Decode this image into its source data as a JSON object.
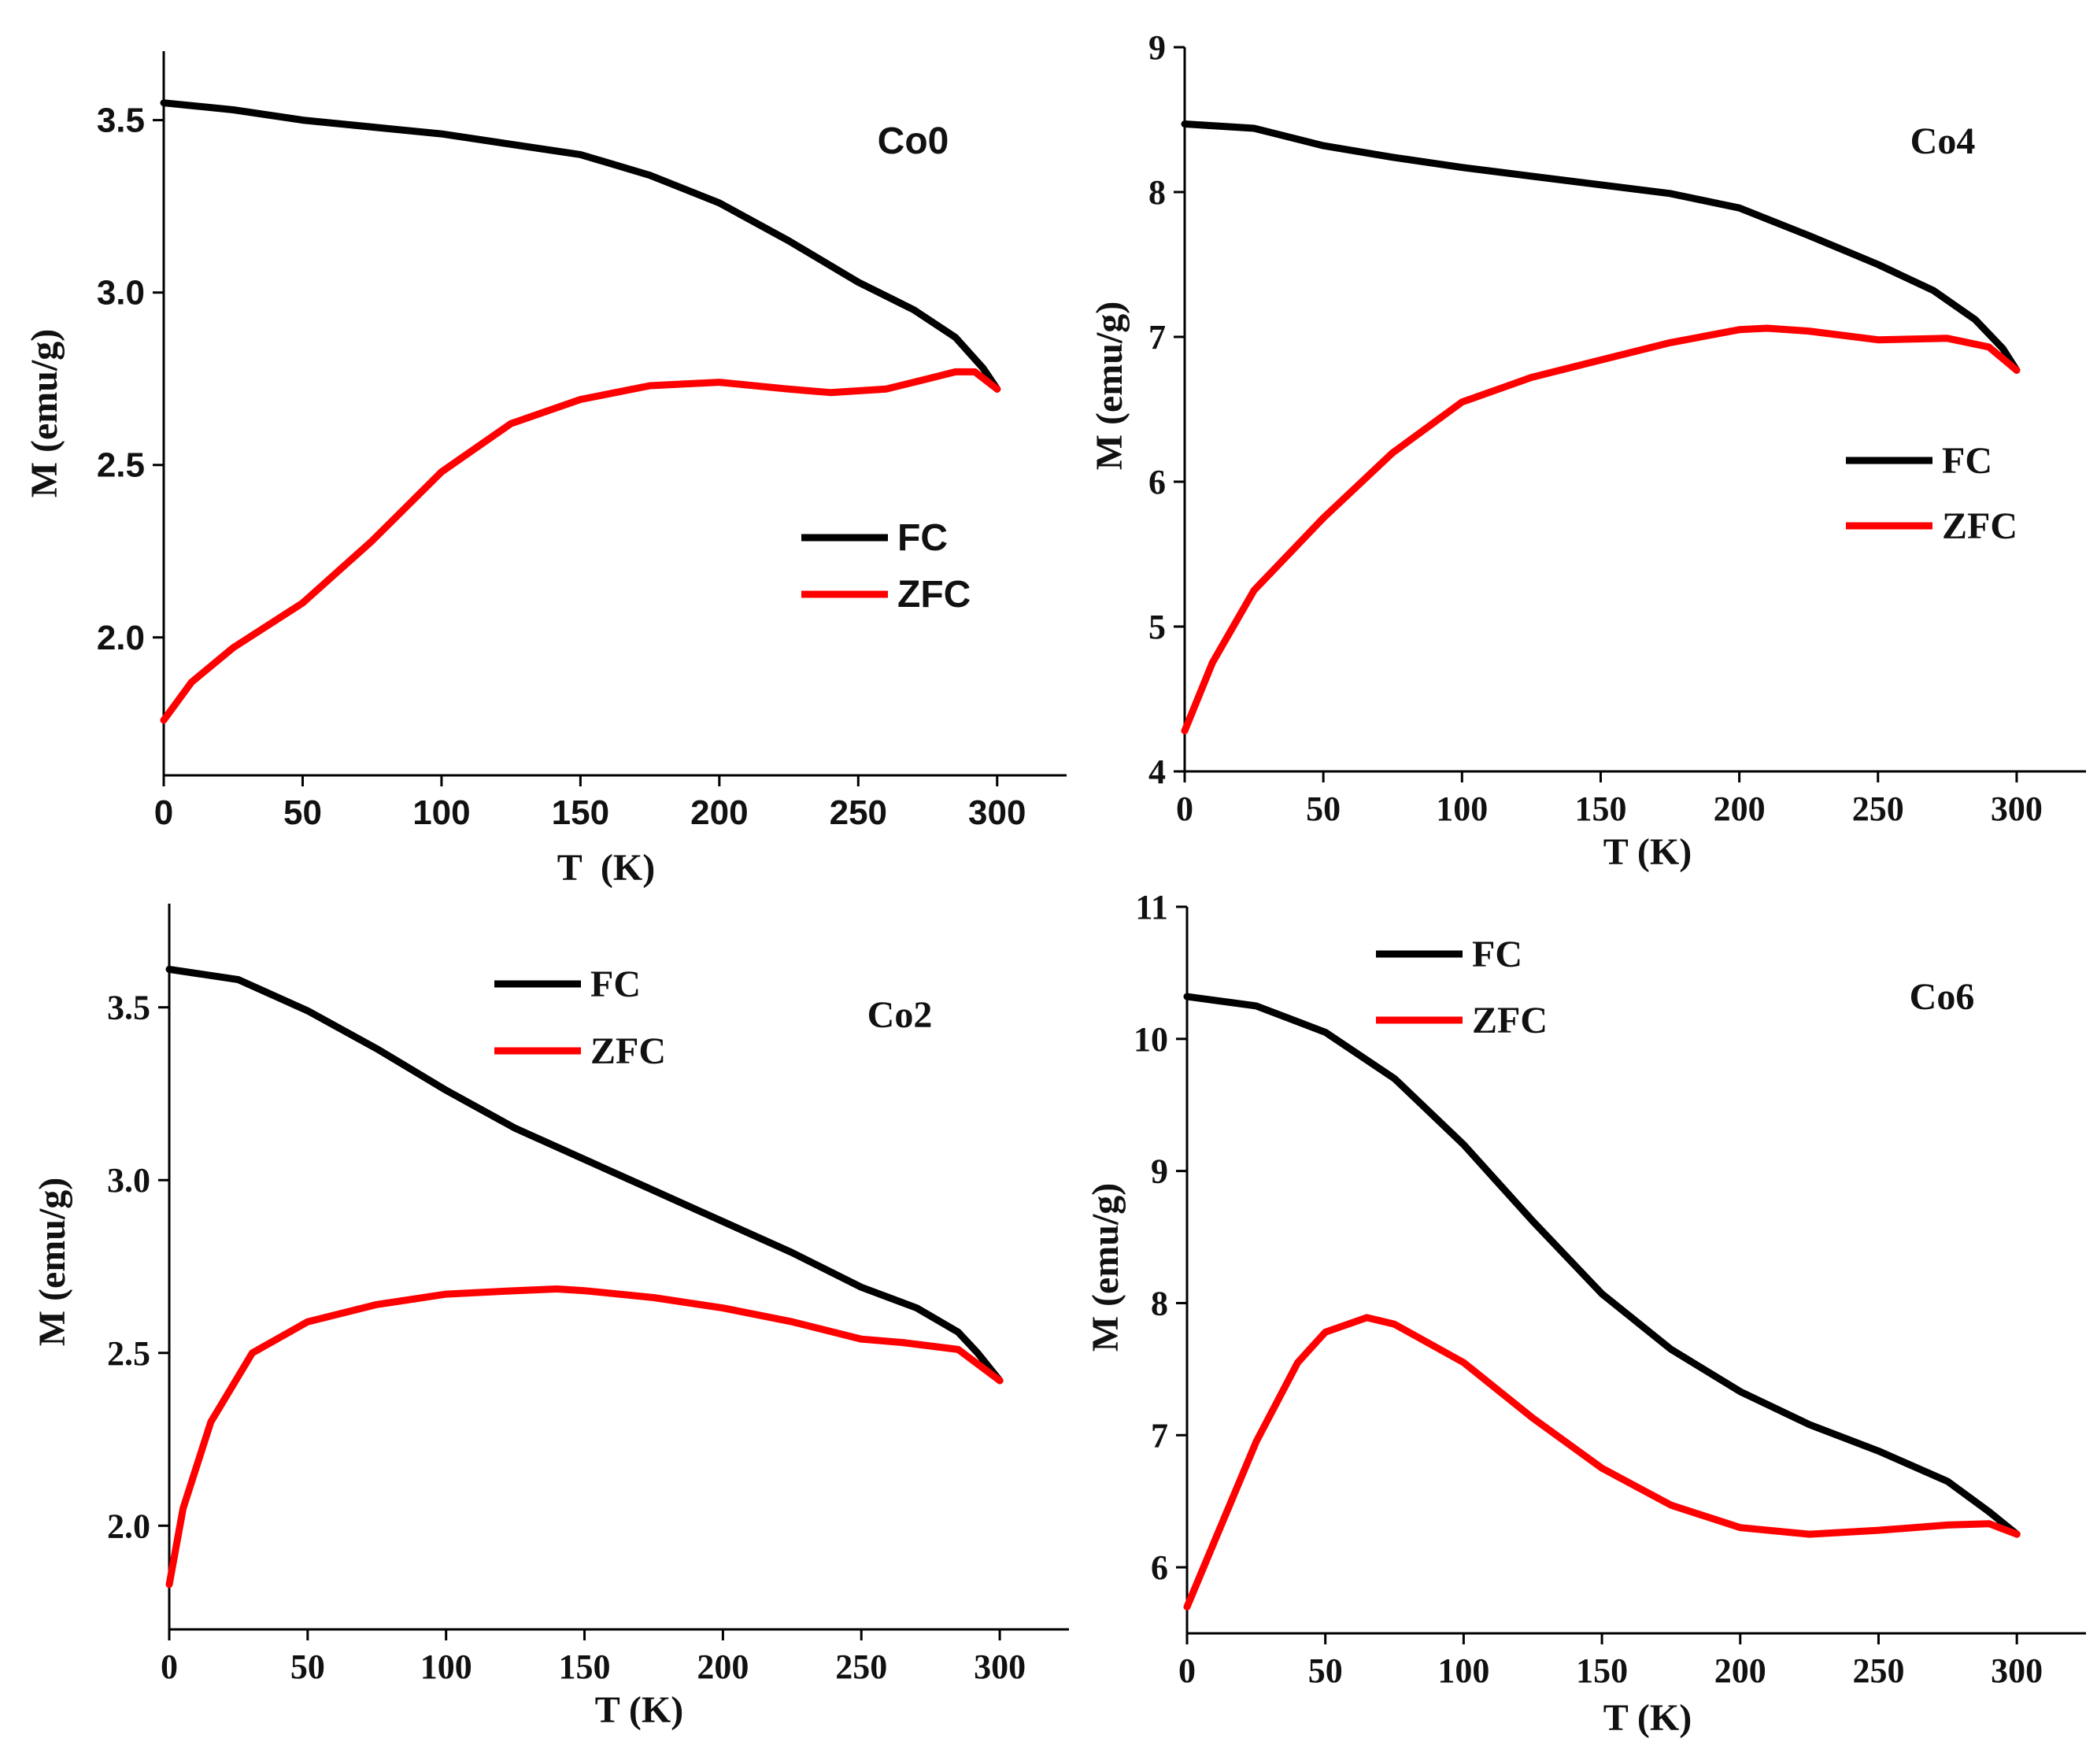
{
  "colors": {
    "FC": "#000000",
    "ZFC": "#ff0000"
  },
  "chart_data": [
    {
      "id": "co0",
      "type": "line",
      "label": "Co0",
      "xlabel": "T  (K)",
      "ylabel": "M (emu/g)",
      "xlim": [
        0,
        325
      ],
      "ylim": [
        1.6,
        3.7
      ],
      "xticks": [
        0,
        50,
        100,
        150,
        200,
        250,
        300
      ],
      "yticks": [
        2.0,
        2.5,
        3.0,
        3.5
      ],
      "ytick_labels": [
        "2.0",
        "2.5",
        "3.0",
        "3.5"
      ],
      "legend": [
        "FC",
        "ZFC"
      ],
      "series": [
        {
          "name": "FC",
          "x": [
            0,
            25,
            50,
            75,
            100,
            125,
            150,
            175,
            200,
            225,
            250,
            270,
            285,
            295,
            300
          ],
          "y": [
            3.55,
            3.53,
            3.5,
            3.48,
            3.46,
            3.43,
            3.4,
            3.34,
            3.26,
            3.15,
            3.03,
            2.95,
            2.87,
            2.78,
            2.72
          ]
        },
        {
          "name": "ZFC",
          "x": [
            0,
            10,
            25,
            50,
            75,
            100,
            125,
            150,
            175,
            200,
            225,
            240,
            260,
            275,
            285,
            292,
            300
          ],
          "y": [
            1.76,
            1.87,
            1.97,
            2.1,
            2.28,
            2.48,
            2.62,
            2.69,
            2.73,
            2.74,
            2.72,
            2.71,
            2.72,
            2.75,
            2.77,
            2.77,
            2.72
          ]
        }
      ]
    },
    {
      "id": "co4",
      "type": "line",
      "label": "Co4",
      "xlabel": "T (K)",
      "ylabel": "M (emu/g)",
      "xlim": [
        0,
        325
      ],
      "ylim": [
        4,
        9
      ],
      "xticks": [
        0,
        50,
        100,
        150,
        200,
        250,
        300
      ],
      "yticks": [
        4,
        5,
        6,
        7,
        8,
        9
      ],
      "ytick_labels": [
        "4",
        "5",
        "6",
        "7",
        "8",
        "9"
      ],
      "legend": [
        "FC",
        "ZFC"
      ],
      "series": [
        {
          "name": "FC",
          "x": [
            0,
            25,
            50,
            75,
            100,
            125,
            150,
            175,
            200,
            225,
            250,
            270,
            285,
            295,
            300
          ],
          "y": [
            8.47,
            8.44,
            8.32,
            8.24,
            8.17,
            8.11,
            8.05,
            7.99,
            7.89,
            7.7,
            7.5,
            7.32,
            7.12,
            6.92,
            6.77
          ]
        },
        {
          "name": "ZFC",
          "x": [
            0,
            10,
            25,
            50,
            75,
            100,
            125,
            150,
            175,
            200,
            210,
            225,
            250,
            275,
            290,
            300
          ],
          "y": [
            4.28,
            4.75,
            5.25,
            5.75,
            6.2,
            6.55,
            6.72,
            6.84,
            6.96,
            7.05,
            7.06,
            7.04,
            6.98,
            6.99,
            6.93,
            6.77
          ]
        }
      ]
    },
    {
      "id": "co2",
      "type": "line",
      "label": "Co2",
      "xlabel": "T (K)",
      "ylabel": "M (emu/g)",
      "xlim": [
        0,
        325
      ],
      "ylim": [
        1.7,
        3.8
      ],
      "xticks": [
        0,
        50,
        100,
        150,
        200,
        250,
        300
      ],
      "yticks": [
        2.0,
        2.5,
        3.0,
        3.5
      ],
      "ytick_labels": [
        "2.0",
        "2.5",
        "3.0",
        "3.5"
      ],
      "legend": [
        "FC",
        "ZFC"
      ],
      "series": [
        {
          "name": "FC",
          "x": [
            0,
            25,
            50,
            75,
            100,
            125,
            150,
            175,
            200,
            225,
            250,
            270,
            285,
            292,
            300
          ],
          "y": [
            3.61,
            3.58,
            3.49,
            3.38,
            3.26,
            3.15,
            3.06,
            2.97,
            2.88,
            2.79,
            2.69,
            2.63,
            2.56,
            2.5,
            2.42
          ]
        },
        {
          "name": "ZFC",
          "x": [
            0,
            5,
            15,
            30,
            50,
            75,
            100,
            125,
            140,
            150,
            175,
            200,
            225,
            250,
            265,
            285,
            300
          ],
          "y": [
            1.83,
            2.05,
            2.3,
            2.5,
            2.59,
            2.64,
            2.67,
            2.68,
            2.685,
            2.68,
            2.66,
            2.63,
            2.59,
            2.54,
            2.53,
            2.51,
            2.42
          ]
        }
      ]
    },
    {
      "id": "co6",
      "type": "line",
      "label": "Co6",
      "xlabel": "T (K)",
      "ylabel": "M (emu/g)",
      "xlim": [
        0,
        325
      ],
      "ylim": [
        5.5,
        11
      ],
      "xticks": [
        0,
        50,
        100,
        150,
        200,
        250,
        300
      ],
      "yticks": [
        6,
        7,
        8,
        9,
        10,
        11
      ],
      "ytick_labels": [
        "6",
        "7",
        "8",
        "9",
        "10",
        "11"
      ],
      "legend": [
        "FC",
        "ZFC"
      ],
      "series": [
        {
          "name": "FC",
          "x": [
            0,
            25,
            50,
            75,
            100,
            125,
            150,
            175,
            200,
            225,
            250,
            275,
            290,
            300
          ],
          "y": [
            10.32,
            10.25,
            10.05,
            9.7,
            9.2,
            8.62,
            8.07,
            7.65,
            7.33,
            7.08,
            6.88,
            6.65,
            6.42,
            6.25
          ]
        },
        {
          "name": "ZFC",
          "x": [
            0,
            10,
            25,
            40,
            50,
            65,
            75,
            100,
            125,
            150,
            175,
            200,
            225,
            250,
            275,
            290,
            300
          ],
          "y": [
            5.7,
            6.2,
            6.95,
            7.55,
            7.78,
            7.89,
            7.84,
            7.55,
            7.13,
            6.75,
            6.47,
            6.3,
            6.25,
            6.28,
            6.32,
            6.33,
            6.25
          ]
        }
      ]
    }
  ]
}
